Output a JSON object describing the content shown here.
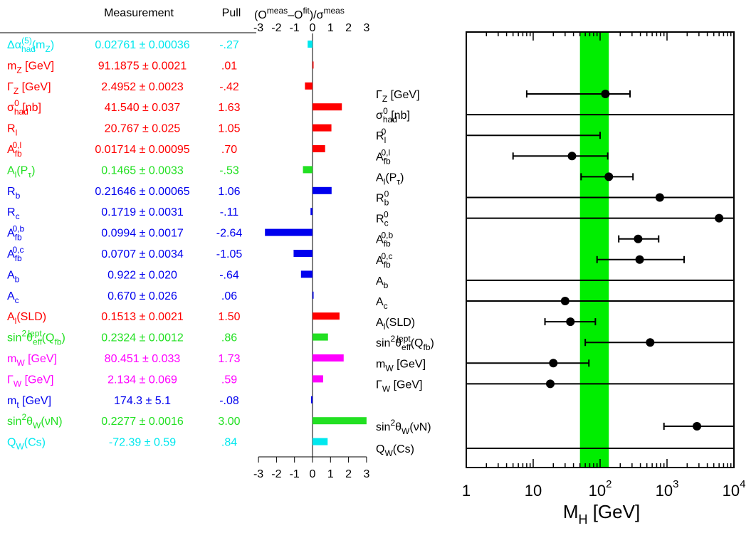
{
  "colors": {
    "cyan": "#00e8ee",
    "red": "#ff0000",
    "green": "#22e022",
    "blue": "#0000ee",
    "magenta": "#ff00ff",
    "band": "#00ee00",
    "black": "#000000"
  },
  "left_panel": {
    "header_measurement": "Measurement",
    "header_pull": "Pull",
    "header_pull_expr": "(O<sup>meas</sup>−O<sup>fit</sup>)/σ<sup>meas</sup>",
    "rows": [
      {
        "label": "Δα<sub>had</sub><sup>(5)</sup>(m<sub>Z</sub>)",
        "value": "0.02761 ± 0.00036",
        "pull_text": "-.27",
        "pull": -0.27,
        "color": "cyan"
      },
      {
        "label": "m<sub>Z</sub> [GeV]",
        "value": "91.1875 ± 0.0021",
        "pull_text": ".01",
        "pull": 0.01,
        "color": "red"
      },
      {
        "label": "Γ<sub>Z</sub> [GeV]",
        "value": "2.4952 ± 0.0023",
        "pull_text": "-.42",
        "pull": -0.42,
        "color": "red"
      },
      {
        "label": "σ<sub>had</sub><sup>0</sup> [nb]",
        "value": "41.540 ± 0.037",
        "pull_text": "1.63",
        "pull": 1.63,
        "color": "red"
      },
      {
        "label": "R<sub>l</sub>",
        "value": "20.767 ± 0.025",
        "pull_text": "1.05",
        "pull": 1.05,
        "color": "red"
      },
      {
        "label": "A<sub>fb</sub><sup>0,l</sup>",
        "value": "0.01714 ± 0.00095",
        "pull_text": ".70",
        "pull": 0.7,
        "color": "red"
      },
      {
        "label": "A<sub>l</sub>(P<sub>τ</sub>)",
        "value": "0.1465 ± 0.0033",
        "pull_text": "-.53",
        "pull": -0.53,
        "color": "green"
      },
      {
        "label": "R<sub>b</sub>",
        "value": "0.21646 ± 0.00065",
        "pull_text": "1.06",
        "pull": 1.06,
        "color": "blue"
      },
      {
        "label": "R<sub>c</sub>",
        "value": "0.1719 ± 0.0031",
        "pull_text": "-.11",
        "pull": -0.11,
        "color": "blue"
      },
      {
        "label": "A<sub>fb</sub><sup>0,b</sup>",
        "value": "0.0994 ± 0.0017",
        "pull_text": "-2.64",
        "pull": -2.64,
        "color": "blue"
      },
      {
        "label": "A<sub>fb</sub><sup>0,c</sup>",
        "value": "0.0707 ± 0.0034",
        "pull_text": "-1.05",
        "pull": -1.05,
        "color": "blue"
      },
      {
        "label": "A<sub>b</sub>",
        "value": "0.922 ± 0.020",
        "pull_text": "-.64",
        "pull": -0.64,
        "color": "blue"
      },
      {
        "label": "A<sub>c</sub>",
        "value": "0.670 ± 0.026",
        "pull_text": ".06",
        "pull": 0.06,
        "color": "blue"
      },
      {
        "label": "A<sub>l</sub>(SLD)",
        "value": "0.1513 ± 0.0021",
        "pull_text": "1.50",
        "pull": 1.5,
        "color": "red"
      },
      {
        "label": "sin<sup>2</sup>θ<sub>eff</sub><sup>lept</sup>(Q<sub>fb</sub>)",
        "value": "0.2324 ± 0.0012",
        "pull_text": ".86",
        "pull": 0.86,
        "color": "green"
      },
      {
        "label": "m<sub>W</sub> [GeV]",
        "value": "80.451 ± 0.033",
        "pull_text": "1.73",
        "pull": 1.73,
        "color": "magenta"
      },
      {
        "label": "Γ<sub>W</sub> [GeV]",
        "value": "2.134 ± 0.069",
        "pull_text": ".59",
        "pull": 0.59,
        "color": "magenta"
      },
      {
        "label": "m<sub>t</sub> [GeV]",
        "value": "174.3 ± 5.1",
        "pull_text": "-.08",
        "pull": -0.08,
        "color": "blue"
      },
      {
        "label": "sin<sup>2</sup>θ<sub>W</sub>(νN)",
        "value": "0.2277 ± 0.0016",
        "pull_text": "3.00",
        "pull": 3.0,
        "color": "green"
      },
      {
        "label": "Q<sub>W</sub>(Cs)",
        "value": "-72.39 ± 0.59",
        "pull_text": ".84",
        "pull": 0.84,
        "color": "cyan"
      }
    ],
    "axis_ticks": [
      -3,
      -2,
      -1,
      0,
      1,
      2,
      3
    ],
    "axis_tick_labels": [
      "-3",
      "-2",
      "-1",
      "0",
      "1",
      "2",
      "3"
    ]
  },
  "right_panel": {
    "xlabel": "M<tspan dy='8' font-size='18'>H</tspan><tspan dy='-8'>  [GeV]</tspan>",
    "xtick_labels": [
      {
        "v": 1,
        "t": "1"
      },
      {
        "v": 10,
        "t": "10"
      },
      {
        "v": 100,
        "t": "10<tspan dy='-12' font-size='15'>2</tspan>"
      },
      {
        "v": 1000,
        "t": "10<tspan dy='-12' font-size='15'>3</tspan>"
      },
      {
        "v": 10000,
        "t": "10<tspan dy='-12' font-size='15'>4</tspan>"
      }
    ],
    "band": [
      50,
      135
    ],
    "rows": [
      {
        "label": "Γ<sub>Z</sub> [GeV]",
        "center": 120,
        "lo": 8,
        "hi": 280
      },
      {
        "label": "σ<sub>had</sub><sup>0</sup> [nb]",
        "center": null,
        "lo": null,
        "hi": null
      },
      {
        "label": "R<sub>l</sub><sup>0</sup>",
        "center": null,
        "lo": 1,
        "hi": 100
      },
      {
        "label": "A<sub>fb</sub><sup>0,l</sup>",
        "center": 38,
        "lo": 5,
        "hi": 130
      },
      {
        "label": "A<sub>l</sub>(P<sub>τ</sub>)",
        "center": 135,
        "lo": 52,
        "hi": 310
      },
      {
        "label": "R<sub>b</sub><sup>0</sup>",
        "center": 780,
        "lo": 1,
        "hi": 10000
      },
      {
        "label": "R<sub>c</sub><sup>0</sup>",
        "center": 6000,
        "lo": 1,
        "hi": 10000
      },
      {
        "label": "A<sub>fb</sub><sup>0,b</sup>",
        "center": 370,
        "lo": 190,
        "hi": 750
      },
      {
        "label": "A<sub>fb</sub><sup>0,c</sup>",
        "center": 390,
        "lo": 90,
        "hi": 1800
      },
      {
        "label": "A<sub>b</sub>",
        "center": null,
        "lo": 1,
        "hi": 10000
      },
      {
        "label": "A<sub>c</sub>",
        "center": 30,
        "lo": 1,
        "hi": 10000
      },
      {
        "label": "A<sub>l</sub>(SLD)",
        "center": 36,
        "lo": 15,
        "hi": 85
      },
      {
        "label": "sin<sup>2</sup>θ<sub>eff</sub><sup>lept</sup>(Q<sub>fb</sub>)",
        "center": 560,
        "lo": 60,
        "hi": 10000
      },
      {
        "label": "m<sub>W</sub> [GeV]",
        "center": 20,
        "lo": 1,
        "hi": 68
      },
      {
        "label": "Γ<sub>W</sub> [GeV]",
        "center": 18,
        "lo": 1,
        "hi": 10000
      },
      {
        "label": "sin<sup>2</sup>θ<sub>W</sub>(νN)",
        "center": 2800,
        "lo": 900,
        "hi": 10000
      },
      {
        "label": "Q<sub>W</sub>(Cs)",
        "center": null,
        "lo": 1,
        "hi": 10000
      }
    ]
  },
  "chart_data": [
    {
      "type": "bar",
      "categories": [
        "Δαhad(5)(mZ)",
        "mZ [GeV]",
        "ΓZ [GeV]",
        "σhad0 [nb]",
        "Rl",
        "Afb0,l",
        "Al(Pτ)",
        "Rb",
        "Rc",
        "Afb0,b",
        "Afb0,c",
        "Ab",
        "Ac",
        "Al(SLD)",
        "sin2θefflept(Qfb)",
        "mW [GeV]",
        "ΓW [GeV]",
        "mt [GeV]",
        "sin2θW(νN)",
        "QW(Cs)"
      ],
      "values": [
        -0.27,
        0.01,
        -0.42,
        1.63,
        1.05,
        0.7,
        -0.53,
        1.06,
        -0.11,
        -2.64,
        -1.05,
        -0.64,
        0.06,
        1.5,
        0.86,
        1.73,
        0.59,
        -0.08,
        3.0,
        0.84
      ],
      "title": "(Omeas−Ofit)/σmeas",
      "xlabel": "",
      "ylabel": "",
      "xlim": [
        -3,
        3
      ]
    },
    {
      "type": "scatter",
      "categories": [
        "ΓZ [GeV]",
        "σhad0 [nb]",
        "Rl0",
        "Afb0,l",
        "Al(Pτ)",
        "Rb0",
        "Rc0",
        "Afb0,b",
        "Afb0,c",
        "Ab",
        "Ac",
        "Al(SLD)",
        "sin2θefflept(Qfb)",
        "mW [GeV]",
        "ΓW [GeV]",
        "sin2θW(νN)",
        "QW(Cs)"
      ],
      "values": [
        120,
        null,
        null,
        38,
        135,
        780,
        6000,
        370,
        390,
        null,
        30,
        36,
        560,
        20,
        18,
        2800,
        null
      ],
      "xlabel": "MH [GeV]",
      "xlim": [
        1,
        10000
      ],
      "xscale": "log",
      "band": [
        50,
        135
      ]
    }
  ]
}
